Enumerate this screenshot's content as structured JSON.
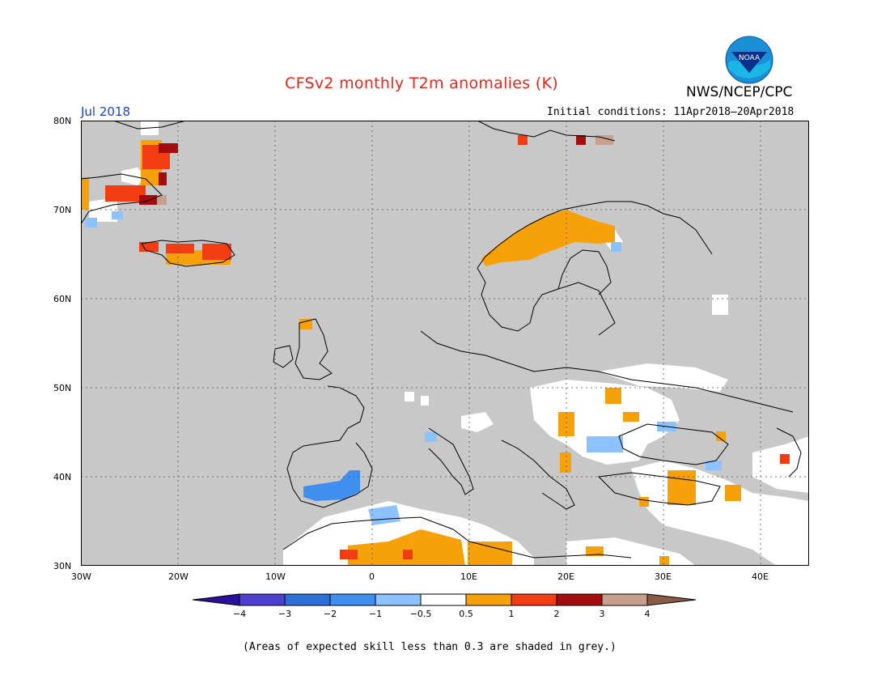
{
  "title": "CFSv2 monthly T2m anomalies (K)",
  "org": "NWS/NCEP/CPC",
  "logo_text": "NOAA",
  "month": "Jul 2018",
  "initial_conditions": "Initial conditions: 11Apr2018–20Apr2018",
  "footnote": "(Areas of expected skill less than 0.3 are shaded in grey.)",
  "map": {
    "lat_labels": [
      "80N",
      "70N",
      "60N",
      "50N",
      "40N",
      "30N"
    ],
    "lon_labels": [
      "30W",
      "20W",
      "10W",
      "0",
      "10E",
      "20E",
      "30E",
      "40E"
    ],
    "lat_range": [
      30,
      80
    ],
    "lon_range": [
      -30,
      45
    ],
    "ocean_color": "#c8c8c8",
    "land_color": "#ffffff"
  },
  "colorbar": {
    "ticks": [
      "−4",
      "−3",
      "−2",
      "−1",
      "−0.5",
      "0.5",
      "1",
      "2",
      "3",
      "4"
    ],
    "colors": [
      "#2a0f9c",
      "#4d3fcf",
      "#2d6fd6",
      "#3f8ff0",
      "#8cc2ff",
      "#ffffff",
      "#f7a10a",
      "#f23d12",
      "#a30d0d",
      "#c89e8e",
      "#8a5a44"
    ]
  },
  "anomaly_patches": [
    {
      "region": "Scandinavia",
      "level": "orange"
    },
    {
      "region": "Iceland",
      "level": "red"
    },
    {
      "region": "East Greenland",
      "level": "dark-red"
    },
    {
      "region": "North Africa",
      "level": "orange"
    },
    {
      "region": "Iberia",
      "level": "blue"
    }
  ]
}
